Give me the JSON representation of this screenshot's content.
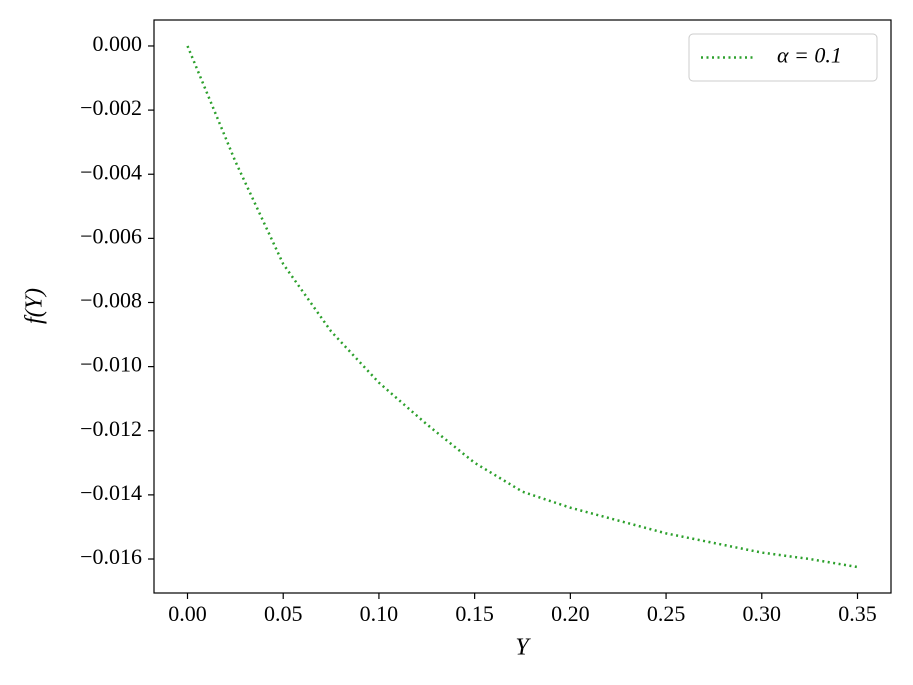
{
  "chart_data": {
    "type": "line",
    "xlabel": "Y",
    "ylabel": "f(Y)",
    "x": [
      0,
      0.025,
      0.05,
      0.075,
      0.1,
      0.125,
      0.15,
      0.175,
      0.2,
      0.225,
      0.25,
      0.275,
      0.3,
      0.325,
      0.35
    ],
    "series": [
      {
        "name": "α = 0.1",
        "color": "#2ca02c",
        "values": [
          0,
          -0.0036,
          -0.0068,
          -0.0089,
          -0.0105,
          -0.0118,
          -0.013,
          -0.0139,
          -0.0144,
          -0.0148,
          -0.0152,
          -0.0155,
          -0.0158,
          -0.016,
          -0.01625
        ]
      }
    ],
    "xlim": [
      -0.0175,
      0.3675
    ],
    "ylim": [
      -0.01706,
      0.00081
    ],
    "xticks": [
      {
        "value": 0,
        "label": "0.00"
      },
      {
        "value": 0.05,
        "label": "0.05"
      },
      {
        "value": 0.1,
        "label": "0.10"
      },
      {
        "value": 0.15,
        "label": "0.15"
      },
      {
        "value": 0.2,
        "label": "0.20"
      },
      {
        "value": 0.25,
        "label": "0.25"
      },
      {
        "value": 0.3,
        "label": "0.30"
      },
      {
        "value": 0.35,
        "label": "0.35"
      }
    ],
    "yticks": [
      {
        "value": 0,
        "label": "0.000"
      },
      {
        "value": -0.002,
        "label": "−0.002"
      },
      {
        "value": -0.004,
        "label": "−0.004"
      },
      {
        "value": -0.006,
        "label": "−0.006"
      },
      {
        "value": -0.008,
        "label": "−0.008"
      },
      {
        "value": -0.01,
        "label": "−0.010"
      },
      {
        "value": -0.012,
        "label": "−0.012"
      },
      {
        "value": -0.014,
        "label": "−0.014"
      },
      {
        "value": -0.016,
        "label": "−0.016"
      }
    ],
    "line_style": "dotted",
    "legend": "upper right",
    "grid": false
  }
}
